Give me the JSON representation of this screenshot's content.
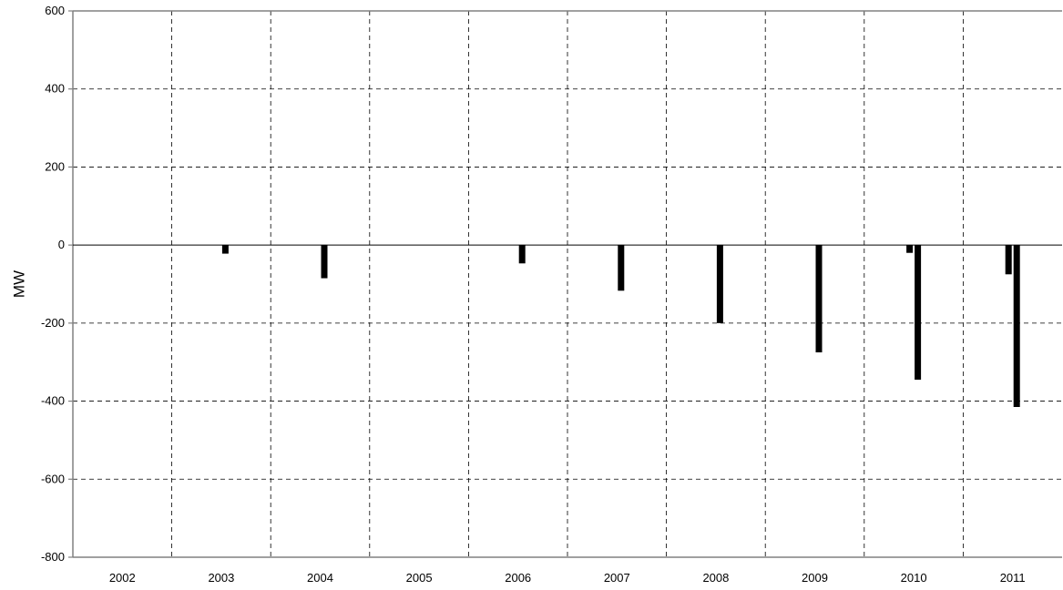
{
  "chart_data": {
    "type": "bar",
    "title": "",
    "xlabel": "",
    "ylabel": "MW",
    "ylim": [
      -800,
      600
    ],
    "yticks": [
      600,
      400,
      200,
      0,
      -200,
      -400,
      -600,
      -800
    ],
    "categories": [
      "2002",
      "2003",
      "2004",
      "2005",
      "2006",
      "2007",
      "2008",
      "2009",
      "2010",
      "2011"
    ],
    "grid": true,
    "legend": "none",
    "bar_color": "#000000",
    "series": [
      {
        "values": [
          null,
          null,
          null,
          null,
          null,
          null,
          null,
          null,
          -20,
          -75
        ]
      },
      {
        "values": [
          null,
          -22,
          -85,
          null,
          -47,
          -117,
          -200,
          -275,
          -345,
          -415
        ]
      }
    ]
  }
}
